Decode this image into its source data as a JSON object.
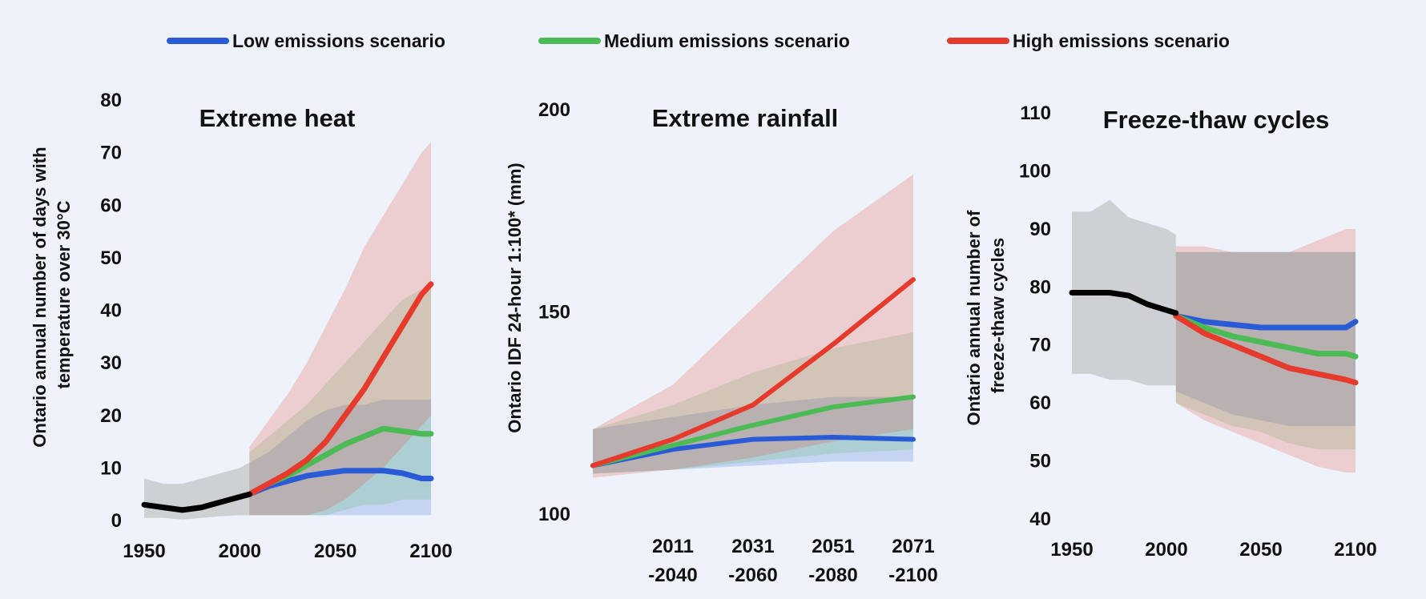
{
  "colors": {
    "low": "#2a5bd7",
    "medium": "#4cba55",
    "high": "#e53a2c",
    "historical": "#000000",
    "historical_band": "#b4b4b4",
    "background": "#eef3fb"
  },
  "legend": {
    "placement": "top-center",
    "items": [
      {
        "key": "low",
        "label": "Low emissions scenario"
      },
      {
        "key": "medium",
        "label": "Medium emissions scenario"
      },
      {
        "key": "high",
        "label": "High emissions scenario"
      }
    ]
  },
  "chart_data": [
    {
      "type": "line",
      "title": "Extreme heat",
      "ylabel": [
        "Ontario annual number of days with",
        "temperature over 30°C"
      ],
      "xlim": [
        1950,
        2100
      ],
      "ylim": [
        0,
        80
      ],
      "xticks": [
        "1950",
        "2000",
        "2050",
        "2100"
      ],
      "yticks": [
        "0",
        "10",
        "20",
        "30",
        "40",
        "50",
        "60",
        "70",
        "80"
      ],
      "grid": false,
      "historical": {
        "x": [
          1950,
          1960,
          1970,
          1980,
          1990,
          2000,
          2005
        ],
        "y": [
          3,
          2.5,
          2,
          2.5,
          3.5,
          4.5,
          5
        ],
        "band": [
          [
            0.5,
            8
          ],
          [
            0.5,
            7
          ],
          [
            0.2,
            7
          ],
          [
            0.5,
            8
          ],
          [
            0.8,
            9
          ],
          [
            1,
            10
          ],
          [
            1,
            11
          ]
        ]
      },
      "series": [
        {
          "key": "low",
          "x": [
            2005,
            2015,
            2025,
            2035,
            2045,
            2055,
            2065,
            2075,
            2085,
            2095,
            2100
          ],
          "y": [
            5,
            6.5,
            7.5,
            8.5,
            9,
            9.5,
            9.5,
            9.5,
            9,
            8,
            8
          ],
          "band": [
            [
              1,
              11
            ],
            [
              1,
              13
            ],
            [
              1,
              16
            ],
            [
              1,
              19
            ],
            [
              1,
              21
            ],
            [
              1,
              22
            ],
            [
              1,
              22
            ],
            [
              1,
              23
            ],
            [
              1,
              23
            ],
            [
              1,
              23
            ],
            [
              1,
              23
            ]
          ]
        },
        {
          "key": "medium",
          "x": [
            2005,
            2015,
            2025,
            2035,
            2045,
            2055,
            2065,
            2075,
            2085,
            2095,
            2100
          ],
          "y": [
            5,
            7,
            8.5,
            10.5,
            12.5,
            14.5,
            16,
            17.5,
            17,
            16.5,
            16.5
          ],
          "band": [
            [
              1,
              13
            ],
            [
              1,
              16
            ],
            [
              1,
              19
            ],
            [
              1,
              22
            ],
            [
              1,
              26
            ],
            [
              2,
              30
            ],
            [
              3,
              34
            ],
            [
              3,
              38
            ],
            [
              4,
              42
            ],
            [
              4,
              44
            ],
            [
              4,
              44
            ]
          ]
        },
        {
          "key": "high",
          "x": [
            2005,
            2015,
            2025,
            2035,
            2045,
            2055,
            2065,
            2075,
            2085,
            2095,
            2100
          ],
          "y": [
            5,
            7,
            9,
            11.5,
            15,
            20,
            25,
            31,
            37,
            43,
            45
          ],
          "band": [
            [
              1,
              14
            ],
            [
              1,
              19
            ],
            [
              1,
              24
            ],
            [
              1,
              30
            ],
            [
              2,
              37
            ],
            [
              4,
              44
            ],
            [
              7,
              52
            ],
            [
              10,
              58
            ],
            [
              14,
              64
            ],
            [
              18,
              70
            ],
            [
              20,
              72
            ]
          ]
        }
      ]
    },
    {
      "type": "line",
      "title": "Extreme rainfall",
      "ylabel": [
        "Ontario IDF 24-hour 1:100* (mm)"
      ],
      "categories": [
        [
          "",
          ""
        ],
        [
          "2011",
          "-2040"
        ],
        [
          "2031",
          "-2060"
        ],
        [
          "2051",
          "-2080"
        ],
        [
          "2071",
          "-2100"
        ]
      ],
      "ylim": [
        100,
        200
      ],
      "yticks": [
        "100",
        "150",
        "200"
      ],
      "grid": false,
      "series": [
        {
          "key": "low",
          "values": [
            112,
            116,
            118.5,
            119,
            118.5
          ],
          "band": [
            [
              110,
              121
            ],
            [
              111,
              124
            ],
            [
              112,
              127
            ],
            [
              113,
              129
            ],
            [
              113,
              129
            ]
          ]
        },
        {
          "key": "medium",
          "values": [
            112,
            117,
            122,
            126.5,
            129
          ],
          "band": [
            [
              110,
              121
            ],
            [
              111,
              127
            ],
            [
              113,
              135
            ],
            [
              115,
              141
            ],
            [
              116,
              145
            ]
          ]
        },
        {
          "key": "high",
          "values": [
            112,
            118.5,
            127,
            142,
            158
          ],
          "band": [
            [
              109,
              121
            ],
            [
              111,
              132
            ],
            [
              114,
              151
            ],
            [
              118,
              170
            ],
            [
              121,
              184
            ]
          ]
        }
      ]
    },
    {
      "type": "line",
      "title": "Freeze-thaw cycles",
      "ylabel": [
        "Ontario annual number of",
        "freeze-thaw cycles"
      ],
      "xlim": [
        1950,
        2100
      ],
      "ylim": [
        40,
        110
      ],
      "xticks": [
        "1950",
        "2000",
        "2050",
        "2100"
      ],
      "yticks": [
        "40",
        "50",
        "60",
        "70",
        "80",
        "90",
        "100",
        "110"
      ],
      "grid": false,
      "historical": {
        "x": [
          1950,
          1960,
          1970,
          1980,
          1990,
          2000,
          2005
        ],
        "y": [
          79,
          79,
          79,
          78.5,
          77,
          76,
          75.5
        ],
        "band": [
          [
            65,
            93
          ],
          [
            65,
            93
          ],
          [
            64,
            95
          ],
          [
            64,
            92
          ],
          [
            63,
            91
          ],
          [
            63,
            90
          ],
          [
            63,
            89
          ]
        ]
      },
      "series": [
        {
          "key": "low",
          "x": [
            2005,
            2020,
            2035,
            2050,
            2065,
            2080,
            2095,
            2100
          ],
          "y": [
            75,
            74,
            73.5,
            73,
            73,
            73,
            73,
            74
          ],
          "band": [
            [
              62,
              86
            ],
            [
              60,
              86
            ],
            [
              58,
              86
            ],
            [
              57,
              86
            ],
            [
              56,
              86
            ],
            [
              56,
              86
            ],
            [
              56,
              86
            ],
            [
              56,
              86
            ]
          ]
        },
        {
          "key": "medium",
          "x": [
            2005,
            2020,
            2035,
            2050,
            2065,
            2080,
            2095,
            2100
          ],
          "y": [
            75,
            73,
            71.5,
            70.5,
            69.5,
            68.5,
            68.5,
            68
          ],
          "band": [
            [
              60,
              86
            ],
            [
              58,
              86
            ],
            [
              56,
              86
            ],
            [
              55,
              86
            ],
            [
              53,
              86
            ],
            [
              52,
              86
            ],
            [
              52,
              86
            ],
            [
              52,
              86
            ]
          ]
        },
        {
          "key": "high",
          "x": [
            2005,
            2020,
            2035,
            2050,
            2065,
            2080,
            2095,
            2100
          ],
          "y": [
            75,
            72,
            70,
            68,
            66,
            65,
            64,
            63.5
          ],
          "band": [
            [
              60,
              87
            ],
            [
              57,
              87
            ],
            [
              55,
              86
            ],
            [
              53,
              86
            ],
            [
              51,
              86
            ],
            [
              49,
              88
            ],
            [
              48,
              90
            ],
            [
              48,
              90
            ]
          ]
        }
      ]
    }
  ]
}
